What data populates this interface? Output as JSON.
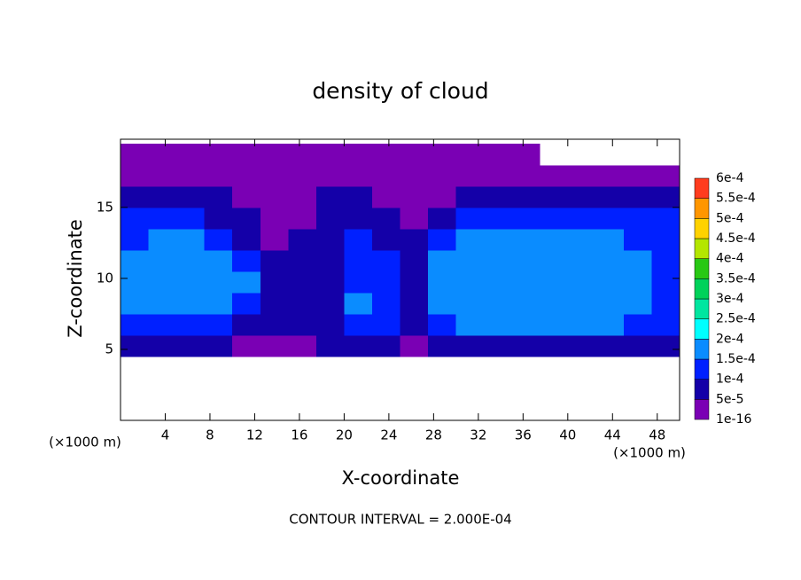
{
  "chart_data": {
    "type": "contour",
    "title": "density of cloud",
    "x_label": "X-coordinate",
    "y_label": "Z-coordinate",
    "x_unit_label": "(×1000 m)",
    "y_unit_label": "(×1000 m)",
    "footer": "CONTOUR INTERVAL = 2.000E-04",
    "xlim": [
      0,
      50
    ],
    "ylim": [
      0,
      19.8
    ],
    "xticks": [
      4,
      8,
      12,
      16,
      20,
      24,
      28,
      32,
      36,
      40,
      44,
      48
    ],
    "yticks": [
      5,
      10,
      15
    ],
    "x": [
      1.25,
      3.75,
      6.25,
      8.75,
      11.25,
      13.75,
      16.25,
      18.75,
      21.25,
      23.75,
      26.25,
      28.75,
      31.25,
      33.75,
      36.25,
      38.75,
      41.25,
      43.75,
      46.25,
      48.75
    ],
    "z": [
      0.75,
      2.25,
      3.75,
      5.25,
      6.75,
      8.25,
      9.75,
      11.25,
      12.75,
      14.25,
      15.75,
      17.25,
      18.75
    ],
    "values": [
      [
        0,
        0,
        0,
        0,
        0,
        0,
        0,
        0,
        0,
        0,
        0,
        0,
        0,
        0,
        0,
        0,
        0,
        0,
        0,
        0
      ],
      [
        0,
        0,
        0,
        0,
        0,
        0,
        0,
        0,
        0,
        0,
        0,
        0,
        0,
        0,
        0,
        0,
        0,
        0,
        0,
        0
      ],
      [
        0,
        0,
        0,
        0,
        0,
        0,
        0,
        0,
        0,
        0,
        0,
        0,
        0,
        0,
        0,
        0,
        0,
        0,
        0,
        0
      ],
      [
        6e-05,
        8e-05,
        8e-05,
        7e-05,
        4e-05,
        3e-05,
        3e-05,
        6e-05,
        8e-05,
        6e-05,
        3e-05,
        7e-05,
        9e-05,
        9e-05,
        9e-05,
        9e-05,
        9e-05,
        8e-05,
        7e-05,
        6e-05
      ],
      [
        0.00012,
        0.00013,
        0.00012,
        0.00011,
        8e-05,
        7e-05,
        6e-05,
        9e-05,
        0.00014,
        0.0001,
        8e-05,
        0.00013,
        0.00016,
        0.00017,
        0.00017,
        0.00017,
        0.00016,
        0.00015,
        0.00013,
        0.00011
      ],
      [
        0.00016,
        0.00017,
        0.00017,
        0.00016,
        0.00012,
        8e-05,
        6e-05,
        9e-05,
        0.00015,
        0.00013,
        9e-05,
        0.00016,
        0.00018,
        0.00019,
        0.00019,
        0.00019,
        0.00018,
        0.00017,
        0.00015,
        0.00013
      ],
      [
        0.00017,
        0.00018,
        0.00018,
        0.00018,
        0.00015,
        9e-05,
        6e-05,
        8e-05,
        0.00013,
        0.00012,
        9e-05,
        0.00017,
        0.00019,
        0.000195,
        0.000195,
        0.000195,
        0.00019,
        0.00018,
        0.00016,
        0.00014
      ],
      [
        0.00016,
        0.00018,
        0.00019,
        0.00018,
        0.00013,
        7e-05,
        5e-05,
        7e-05,
        0.0001,
        0.0001,
        8e-05,
        0.00016,
        0.00019,
        0.000195,
        0.000195,
        0.000195,
        0.00019,
        0.00018,
        0.00015,
        0.00013
      ],
      [
        0.00013,
        0.00015,
        0.00016,
        0.00014,
        6e-05,
        4e-05,
        5e-05,
        8e-05,
        0.0001,
        9e-05,
        6e-05,
        0.00013,
        0.00017,
        0.00018,
        0.00018,
        0.00018,
        0.00017,
        0.00015,
        0.00012,
        0.0001
      ],
      [
        0.00011,
        0.00011,
        0.00011,
        9e-05,
        5e-05,
        3e-05,
        4e-05,
        7e-05,
        9e-05,
        6e-05,
        4e-05,
        8e-05,
        0.00012,
        0.00014,
        0.00014,
        0.00013,
        0.00012,
        0.0001,
        0.0001,
        0.00011
      ],
      [
        8e-05,
        7e-05,
        6e-05,
        6e-05,
        4e-05,
        3e-05,
        4e-05,
        6e-05,
        5e-05,
        3e-05,
        3e-05,
        4e-05,
        7e-05,
        8e-05,
        8e-05,
        8e-05,
        7e-05,
        6e-05,
        6e-05,
        8e-05
      ],
      [
        4e-05,
        3e-05,
        3e-05,
        3e-05,
        3e-05,
        3e-05,
        3e-05,
        3e-05,
        3e-05,
        3e-05,
        3e-05,
        3e-05,
        3e-05,
        4e-05,
        4e-05,
        4e-05,
        3e-05,
        3e-05,
        3e-05,
        4e-05
      ],
      [
        2e-05,
        2e-05,
        2e-05,
        2e-05,
        2e-05,
        2e-05,
        2e-05,
        2e-05,
        2e-05,
        2e-05,
        2e-05,
        2e-05,
        2e-05,
        2e-05,
        2e-05,
        0,
        0,
        0,
        0,
        0
      ]
    ],
    "colorbar": {
      "levels": [
        {
          "value": 1e-16,
          "label": "1e-16"
        },
        {
          "value": 5e-05,
          "label": "5e-5"
        },
        {
          "value": 0.0001,
          "label": "1e-4"
        },
        {
          "value": 0.00015,
          "label": "1.5e-4"
        },
        {
          "value": 0.0002,
          "label": "2e-4"
        },
        {
          "value": 0.00025,
          "label": "2.5e-4"
        },
        {
          "value": 0.0003,
          "label": "3e-4"
        },
        {
          "value": 0.00035,
          "label": "3.5e-4"
        },
        {
          "value": 0.0004,
          "label": "4e-4"
        },
        {
          "value": 0.00045,
          "label": "4.5e-4"
        },
        {
          "value": 0.0005,
          "label": "5e-4"
        },
        {
          "value": 0.00055,
          "label": "5.5e-4"
        },
        {
          "value": 0.0006,
          "label": "6e-4"
        }
      ],
      "colors": [
        "#7a00b4",
        "#1400a8",
        "#0020ff",
        "#0a8cff",
        "#00ffff",
        "#00e6a0",
        "#00d25a",
        "#28c814",
        "#b4e600",
        "#ffd200",
        "#ff9600",
        "#ff3c1e",
        "#ff8c8c"
      ]
    }
  }
}
